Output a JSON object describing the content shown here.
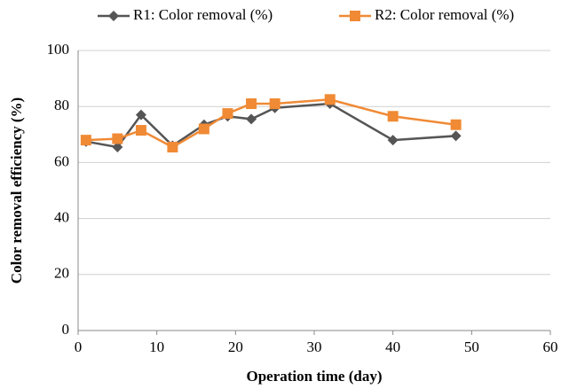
{
  "chart_data": {
    "type": "line",
    "x_label": "Operation time (day)",
    "y_label": "Color removal efficiency (%)",
    "x": [
      1,
      5,
      8,
      12,
      16,
      19,
      22,
      25,
      32,
      40,
      48
    ],
    "series": [
      {
        "name": "R1: Color removal (%)",
        "color": "#555555",
        "marker": "diamond",
        "values": [
          67.5,
          65.5,
          77,
          66,
          73.5,
          76.5,
          75.5,
          79.5,
          81,
          68,
          69.5
        ]
      },
      {
        "name": "R2: Color removal (%)",
        "color": "#f08a35",
        "marker": "square",
        "values": [
          68,
          68.5,
          71.5,
          65.5,
          72,
          77.5,
          81,
          81,
          82.5,
          76.5,
          73.5
        ]
      }
    ],
    "xlim": [
      0,
      60
    ],
    "xticks": [
      0,
      10,
      20,
      30,
      40,
      50,
      60
    ],
    "ylim": [
      0,
      100
    ],
    "yticks": [
      0,
      20,
      40,
      60,
      80,
      100
    ],
    "grid": true
  }
}
